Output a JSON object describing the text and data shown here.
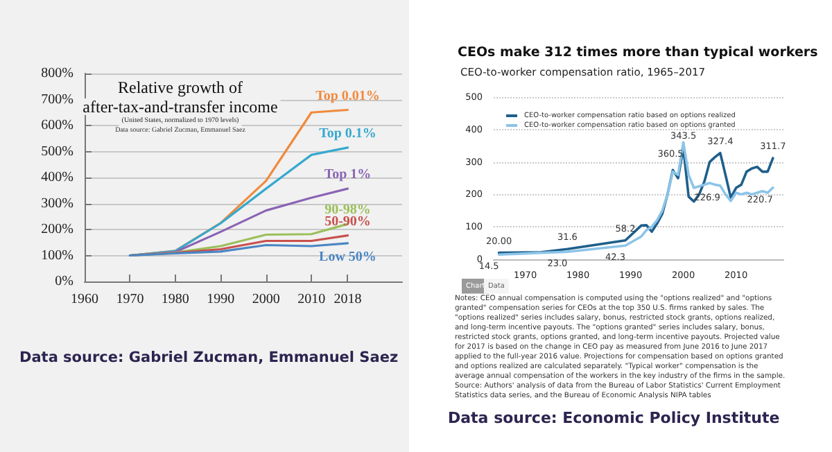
{
  "chart_data": [
    {
      "type": "line",
      "title": "Relative growth of\nafter-tax-and-transfer income",
      "subtitle": "(United States, normalized to 1970 levels)",
      "annotations": [
        "Data source: Gabriel Zucman, Emmanuel Saez",
        "Data source: Gabriel Zucman, Emmanuel Saez"
      ],
      "x": [
        1970,
        1980,
        1990,
        2000,
        2010,
        2018
      ],
      "xlim": [
        1960,
        2030
      ],
      "xticks": [
        1960,
        1970,
        1980,
        1990,
        2000,
        2010,
        2018
      ],
      "ylim": [
        0,
        800
      ],
      "yticks": [
        {
          "value": 0,
          "label": "0%"
        },
        {
          "value": 100,
          "label": "100%"
        },
        {
          "value": 200,
          "label": "200%"
        },
        {
          "value": 300,
          "label": "300%"
        },
        {
          "value": 400,
          "label": "400%"
        },
        {
          "value": 500,
          "label": "500%"
        },
        {
          "value": 600,
          "label": "600%"
        },
        {
          "value": 700,
          "label": "700%"
        },
        {
          "value": 800,
          "label": "800%"
        }
      ],
      "grid": "y",
      "legend": false,
      "marker": "none",
      "line_style": "solid",
      "series": [
        {
          "name": "Top 0.01%",
          "color": "#f08a3c",
          "values": [
            100,
            118,
            225,
            387,
            650,
            660
          ]
        },
        {
          "name": "Top 0.1%",
          "color": "#36a9cf",
          "values": [
            100,
            117,
            224,
            357,
            487,
            515
          ]
        },
        {
          "name": "Top 1%",
          "color": "#8a64b4",
          "values": [
            100,
            113,
            191,
            273,
            322,
            357
          ]
        },
        {
          "name": "90-98%",
          "color": "#9bbf5a",
          "values": [
            100,
            111,
            136,
            180,
            182,
            221
          ]
        },
        {
          "name": "50-90%",
          "color": "#c9504c",
          "values": [
            100,
            110,
            124,
            156,
            156,
            177
          ]
        },
        {
          "name": "Low 50%",
          "color": "#4a86c4",
          "values": [
            100,
            108,
            115,
            140,
            136,
            147
          ]
        }
      ]
    },
    {
      "type": "line",
      "title": "CEOs make 312 times more than typical workers",
      "subtitle": "CEO-to-worker compensation ratio, 1965–2017",
      "annotations": [
        "Chart",
        "Data",
        "Notes: CEO annual compensation is computed using the \"options realized\" and \"options granted\" compensation series for CEOs at the top 350 U.S. firms ranked by sales. The \"options realized\" series includes salary, bonus, restricted stock grants, options realized, and long-term incentive payouts. The \"options granted\" series includes salary, bonus, restricted stock grants, options granted, and long-term incentive payouts. Projected value for 2017 is based on the change in CEO pay as measured from June 2016 to June 2017 applied to the full-year 2016 value. Projections for compensation based on options granted and options realized are calculated separately. \"Typical worker\" compensation is the average annual compensation of the workers in the key industry of the firms in the sample.",
        "Source: Authors' analysis of data from the Bureau of Labor Statistics' Current Employment Statistics data series, and the Bureau of Economic Analysis NIPA tables",
        "Data source: Economic Policy Institute"
      ],
      "x": [
        1965,
        1973,
        1978,
        1989,
        1992,
        1993,
        1994,
        1995,
        1996,
        1997,
        1998,
        1999,
        2000,
        2001,
        2002,
        2003,
        2004,
        2005,
        2006,
        2007,
        2008,
        2009,
        2010,
        2011,
        2012,
        2013,
        2014,
        2015,
        2016,
        2017
      ],
      "xlim": [
        1964,
        2019
      ],
      "xticks": [
        1970,
        1980,
        1990,
        2000,
        2010
      ],
      "ylim": [
        0,
        500
      ],
      "yticks": [
        0,
        100,
        200,
        300,
        400,
        500
      ],
      "grid": "y",
      "legend": "top left",
      "marker": "none",
      "line_style": "solid",
      "series": [
        {
          "name": "CEO-to-worker compensation ratio based on options realized",
          "color": "#1f5f8b",
          "values": [
            20.0,
            22,
            31.6,
            58.2,
            104,
            105,
            85,
            110,
            140,
            200,
            275,
            250,
            343.5,
            193,
            178,
            200,
            240,
            300,
            315,
            327.4,
            260,
            190,
            220,
            230,
            270,
            280,
            285,
            270,
            270,
            311.7
          ],
          "value_labels": [
            "20.00",
            null,
            "31.6",
            "58.2",
            null,
            null,
            null,
            null,
            null,
            null,
            null,
            null,
            "343.5",
            null,
            null,
            null,
            null,
            null,
            null,
            "327.4",
            null,
            null,
            null,
            null,
            null,
            null,
            null,
            null,
            null,
            "311.7"
          ]
        },
        {
          "name": "CEO-to-worker compensation ratio based on options granted",
          "color": "#8cc4e8",
          "values": [
            14.5,
            20,
            23.0,
            42.3,
            70,
            90,
            100,
            120,
            150,
            200,
            270,
            260,
            360.5,
            260,
            220,
            225,
            230,
            235,
            230,
            226.9,
            200,
            180,
            205,
            200,
            205,
            200,
            205,
            210,
            205,
            220.7
          ],
          "value_labels": [
            "14.5",
            null,
            "23.0",
            "42.3",
            null,
            null,
            null,
            null,
            null,
            null,
            null,
            null,
            "360.5",
            null,
            null,
            null,
            null,
            null,
            null,
            "226.9",
            null,
            null,
            null,
            null,
            null,
            null,
            null,
            null,
            null,
            "220.7"
          ]
        }
      ]
    }
  ]
}
